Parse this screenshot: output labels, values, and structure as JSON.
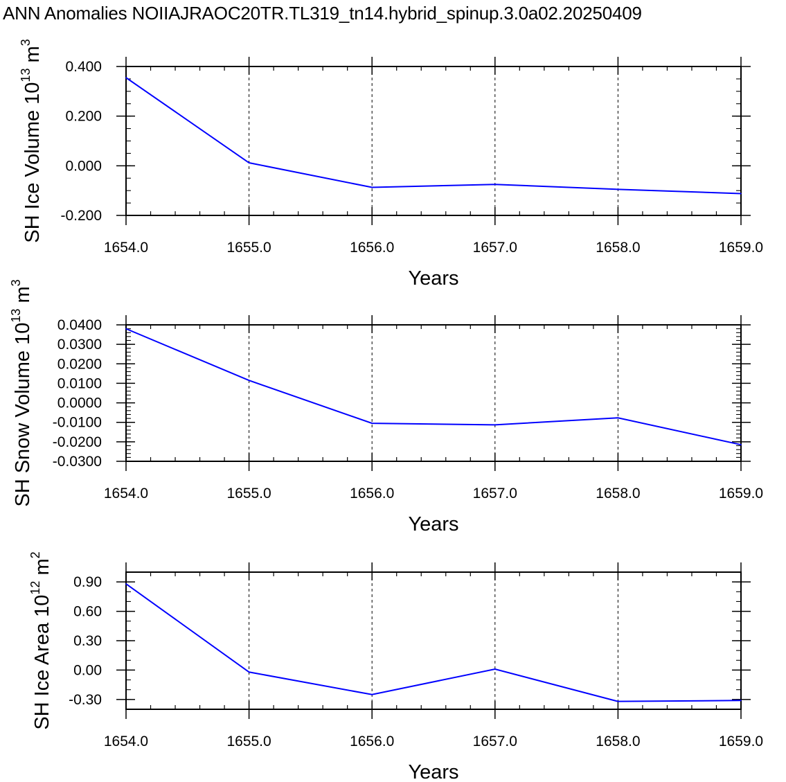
{
  "title": "ANN Anomalies NOIIAJRAOC20TR.TL319_tn14.hybrid_spinup.3.0a02.20250409",
  "chart_data": [
    {
      "type": "line",
      "ylabel": "SH Ice Volume 10",
      "ylabel_exp": "13",
      "ylabel_unit": "m",
      "ylabel_unit_exp": "3",
      "xlabel": "Years",
      "x": [
        1654,
        1655,
        1656,
        1657,
        1658,
        1659
      ],
      "x_tick_labels": [
        "1654.0",
        "1655.0",
        "1656.0",
        "1657.0",
        "1658.0",
        "1659.0"
      ],
      "xlim": [
        1654,
        1659
      ],
      "ylim": [
        -0.2,
        0.4
      ],
      "y_ticks": [
        -0.2,
        0.0,
        0.2,
        0.4
      ],
      "y_tick_labels": [
        "-0.200",
        "0.000",
        "0.200",
        "0.400"
      ],
      "y_minor_step": 0.05,
      "series": [
        {
          "values": [
            0.355,
            0.012,
            -0.087,
            -0.075,
            -0.095,
            -0.112
          ],
          "color": "#0000ff"
        }
      ],
      "grid_x": "dashed"
    },
    {
      "type": "line",
      "ylabel": "SH Snow Volume 10",
      "ylabel_exp": "13",
      "ylabel_unit": "m",
      "ylabel_unit_exp": "3",
      "xlabel": "Years",
      "x": [
        1654,
        1655,
        1656,
        1657,
        1658,
        1659
      ],
      "x_tick_labels": [
        "1654.0",
        "1655.0",
        "1656.0",
        "1657.0",
        "1658.0",
        "1659.0"
      ],
      "xlim": [
        1654,
        1659
      ],
      "ylim": [
        -0.03,
        0.04
      ],
      "y_ticks": [
        -0.03,
        -0.02,
        -0.01,
        0.0,
        0.01,
        0.02,
        0.03,
        0.04
      ],
      "y_tick_labels": [
        "-0.0300",
        "-0.0200",
        "-0.0100",
        "0.0000",
        "0.0100",
        "0.0200",
        "0.0300",
        "0.0400"
      ],
      "y_minor_step": 0.002,
      "series": [
        {
          "values": [
            0.038,
            0.0115,
            -0.0105,
            -0.0113,
            -0.0077,
            -0.0215
          ],
          "color": "#0000ff"
        }
      ],
      "grid_x": "dashed"
    },
    {
      "type": "line",
      "ylabel": "SH Ice Area 10",
      "ylabel_exp": "12",
      "ylabel_unit": "m",
      "ylabel_unit_exp": "2",
      "xlabel": "Years",
      "x": [
        1654,
        1655,
        1656,
        1657,
        1658,
        1659
      ],
      "x_tick_labels": [
        "1654.0",
        "1655.0",
        "1656.0",
        "1657.0",
        "1658.0",
        "1659.0"
      ],
      "xlim": [
        1654,
        1659
      ],
      "ylim": [
        -0.4,
        1.0
      ],
      "y_ticks": [
        -0.3,
        0.0,
        0.3,
        0.6,
        0.9
      ],
      "y_tick_labels": [
        "-0.30",
        "0.00",
        "0.30",
        "0.60",
        "0.90"
      ],
      "y_minor_step": 0.1,
      "series": [
        {
          "values": [
            0.88,
            -0.02,
            -0.25,
            0.01,
            -0.32,
            -0.31
          ],
          "color": "#0000ff"
        }
      ],
      "grid_x": "dashed"
    }
  ]
}
